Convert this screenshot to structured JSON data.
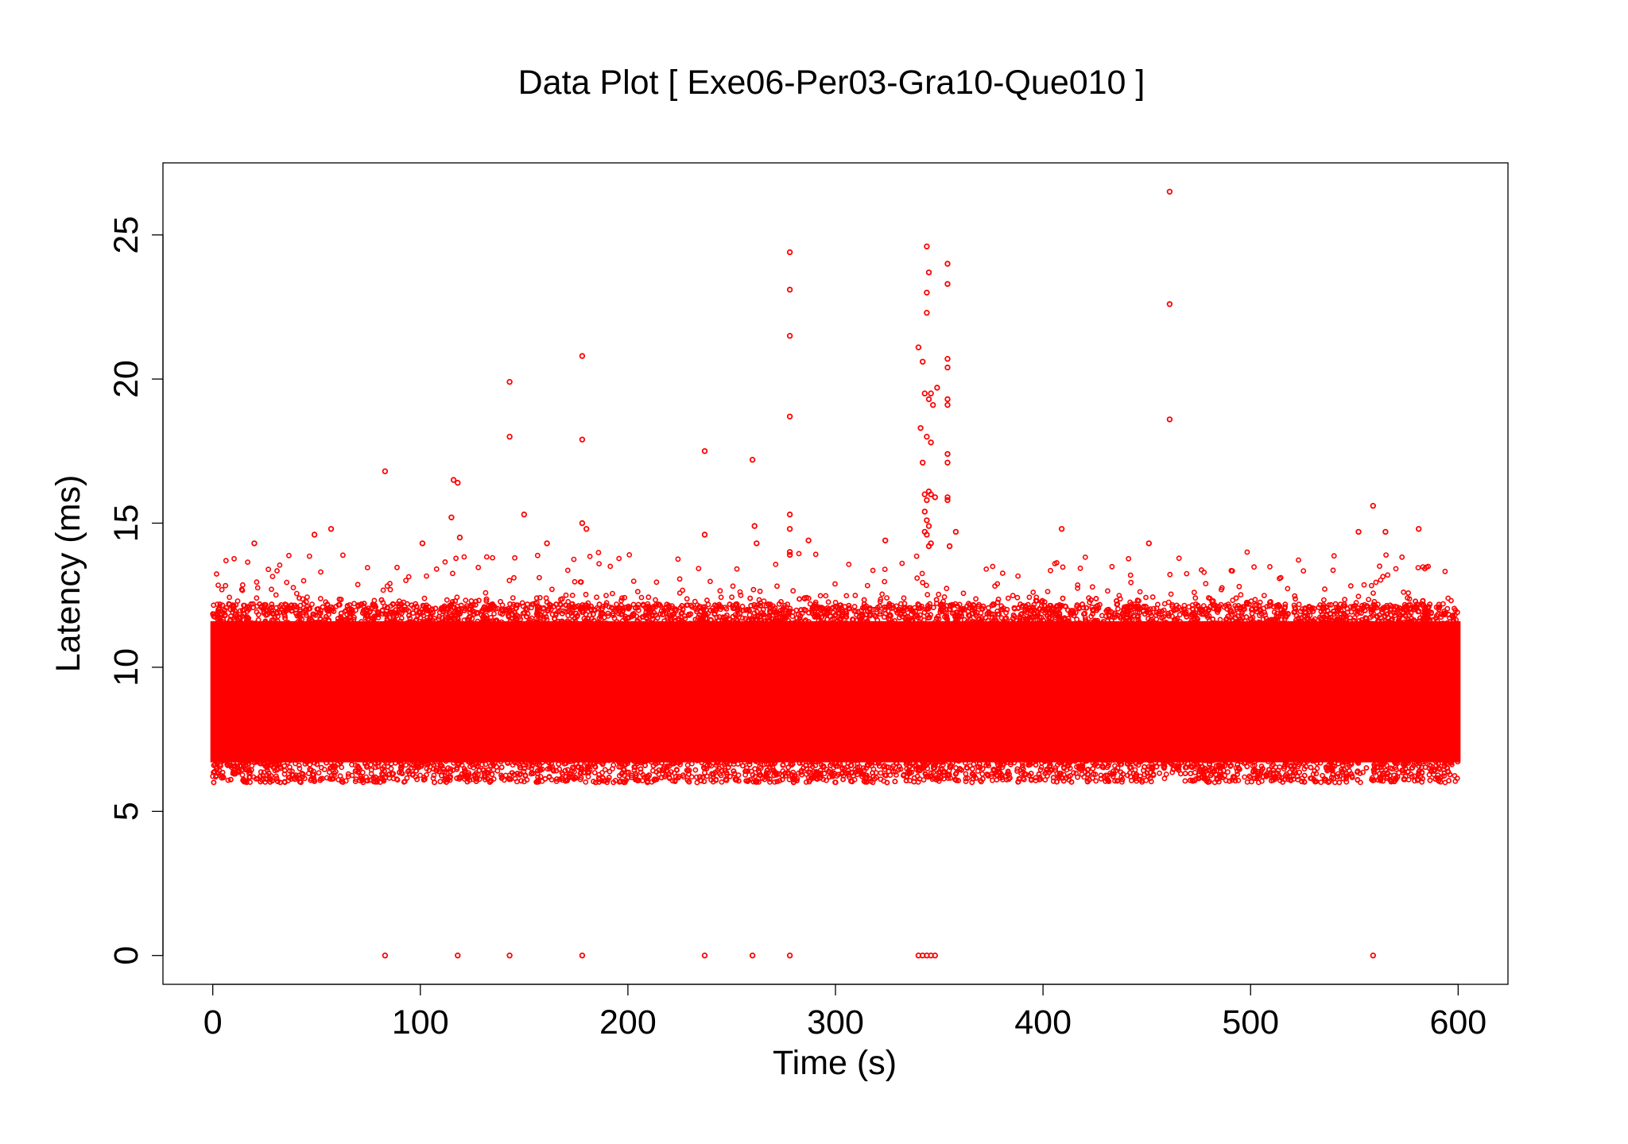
{
  "chart_data": {
    "type": "scatter",
    "title": "Data Plot [ Exe06-Per03-Gra10-Que010 ]",
    "xlabel": "Time (s)",
    "ylabel": "Latency (ms)",
    "xlim": [
      -24,
      624
    ],
    "ylim": [
      -1.0,
      27.5
    ],
    "x_ticks": [
      0,
      100,
      200,
      300,
      400,
      500,
      600
    ],
    "y_ticks": [
      0,
      5,
      10,
      15,
      20,
      25
    ],
    "x_tick_labels": [
      "0",
      "100",
      "200",
      "300",
      "400",
      "500",
      "600"
    ],
    "y_tick_labels": [
      "0",
      "5",
      "10",
      "15",
      "20",
      "25"
    ],
    "grid": false,
    "legend": "none",
    "marker": "open circle",
    "marker_color": "#ff0000",
    "dense_band": {
      "x_range": [
        0,
        600
      ],
      "y_core_range": [
        6.5,
        11.8
      ],
      "y_full_range": [
        6.0,
        12.2
      ],
      "approx_points": 60000,
      "description_note": "main latency band, points densely packed"
    },
    "series": [
      {
        "points": [
          [
            83,
            16.8
          ],
          [
            116,
            16.5
          ],
          [
            118,
            16.4
          ],
          [
            115,
            15.2
          ],
          [
            119,
            14.5
          ],
          [
            143,
            19.9
          ],
          [
            143,
            18.0
          ],
          [
            150,
            15.3
          ],
          [
            178,
            20.8
          ],
          [
            178,
            17.9
          ],
          [
            178,
            15.0
          ],
          [
            180,
            14.8
          ],
          [
            237,
            17.5
          ],
          [
            237,
            14.6
          ],
          [
            260,
            17.2
          ],
          [
            261,
            14.9
          ],
          [
            262,
            14.3
          ],
          [
            278,
            24.4
          ],
          [
            278,
            23.1
          ],
          [
            278,
            21.5
          ],
          [
            278,
            18.7
          ],
          [
            278,
            15.3
          ],
          [
            278,
            14.8
          ],
          [
            278,
            14.0
          ],
          [
            278,
            13.9
          ],
          [
            287,
            14.4
          ],
          [
            324,
            14.4
          ],
          [
            340,
            21.1
          ],
          [
            342,
            20.6
          ],
          [
            343,
            19.5
          ],
          [
            344,
            24.6
          ],
          [
            345,
            23.7
          ],
          [
            344,
            23.0
          ],
          [
            344,
            22.3
          ],
          [
            345,
            19.3
          ],
          [
            346,
            19.5
          ],
          [
            349,
            19.7
          ],
          [
            347,
            19.1
          ],
          [
            341,
            18.3
          ],
          [
            342,
            17.1
          ],
          [
            344,
            18.0
          ],
          [
            346,
            17.8
          ],
          [
            343,
            16.0
          ],
          [
            344,
            15.8
          ],
          [
            345,
            16.1
          ],
          [
            346,
            16.0
          ],
          [
            343,
            15.4
          ],
          [
            344,
            15.1
          ],
          [
            345,
            14.9
          ],
          [
            343,
            14.7
          ],
          [
            344,
            14.6
          ],
          [
            345,
            14.2
          ],
          [
            346,
            14.3
          ],
          [
            348,
            15.9
          ],
          [
            354,
            24.0
          ],
          [
            354,
            23.3
          ],
          [
            354,
            20.7
          ],
          [
            354,
            20.4
          ],
          [
            354,
            19.3
          ],
          [
            354,
            19.1
          ],
          [
            354,
            17.4
          ],
          [
            354,
            17.1
          ],
          [
            354,
            15.9
          ],
          [
            354,
            15.8
          ],
          [
            358,
            14.7
          ],
          [
            355,
            14.2
          ],
          [
            409,
            14.8
          ],
          [
            451,
            14.3
          ],
          [
            461,
            26.5
          ],
          [
            461,
            22.6
          ],
          [
            461,
            18.6
          ],
          [
            559,
            15.6
          ],
          [
            552,
            14.7
          ],
          [
            565,
            14.7
          ],
          [
            581,
            14.8
          ],
          [
            57,
            14.8
          ],
          [
            49,
            14.6
          ],
          [
            20,
            14.3
          ],
          [
            101,
            14.3
          ],
          [
            161,
            14.3
          ],
          [
            83,
            0
          ],
          [
            118,
            0
          ],
          [
            143,
            0
          ],
          [
            178,
            0
          ],
          [
            237,
            0
          ],
          [
            260,
            0
          ],
          [
            278,
            0
          ],
          [
            340,
            0
          ],
          [
            342,
            0
          ],
          [
            344,
            0
          ],
          [
            346,
            0
          ],
          [
            348,
            0
          ],
          [
            559,
            0
          ]
        ]
      }
    ]
  }
}
